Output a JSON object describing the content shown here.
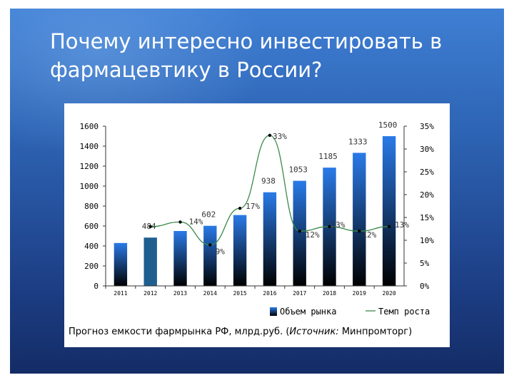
{
  "slide": {
    "title": "Почему интересно инвестировать в фармацевтику в России?",
    "caption_prefix": "Прогноз емкости фармрынка РФ, млрд.руб. (",
    "caption_source_label": "Источник:",
    "caption_source_value": " Минпромторг)"
  },
  "chart_data": {
    "type": "bar",
    "title": "",
    "categories": [
      "2011",
      "2012",
      "2013",
      "2014",
      "2015",
      "2016",
      "2017",
      "2018",
      "2019",
      "2020"
    ],
    "series": [
      {
        "name": "Объем рынка",
        "type": "bar",
        "axis": "left",
        "values": [
          430,
          484,
          550,
          602,
          710,
          938,
          1053,
          1185,
          1333,
          1500
        ],
        "labels": [
          "",
          "484",
          "",
          "602",
          "",
          "938",
          "1053",
          "1185",
          "1333",
          "1500"
        ]
      },
      {
        "name": "Темп роста",
        "type": "line",
        "axis": "right",
        "values": [
          null,
          13,
          14,
          9,
          17,
          33,
          12,
          13,
          12,
          13
        ],
        "labels": [
          "",
          "",
          "14%",
          "9%",
          "17%",
          "33%",
          "12%",
          "13%",
          "12%",
          "13%"
        ]
      }
    ],
    "y_left": {
      "ticks": [
        0,
        200,
        400,
        600,
        800,
        1000,
        1200,
        1400,
        1600
      ],
      "range": [
        0,
        1600
      ]
    },
    "y_right": {
      "ticks": [
        "0%",
        "5%",
        "10%",
        "15%",
        "20%",
        "25%",
        "30%",
        "35%"
      ],
      "range": [
        0,
        35
      ]
    },
    "legend_position": "bottom",
    "grid": false,
    "colors": {
      "bar_top": "#2a7ae8",
      "bar_bottom": "#000000",
      "bar_highlight": "#1f5f8f",
      "line": "#3a8a4a"
    }
  }
}
